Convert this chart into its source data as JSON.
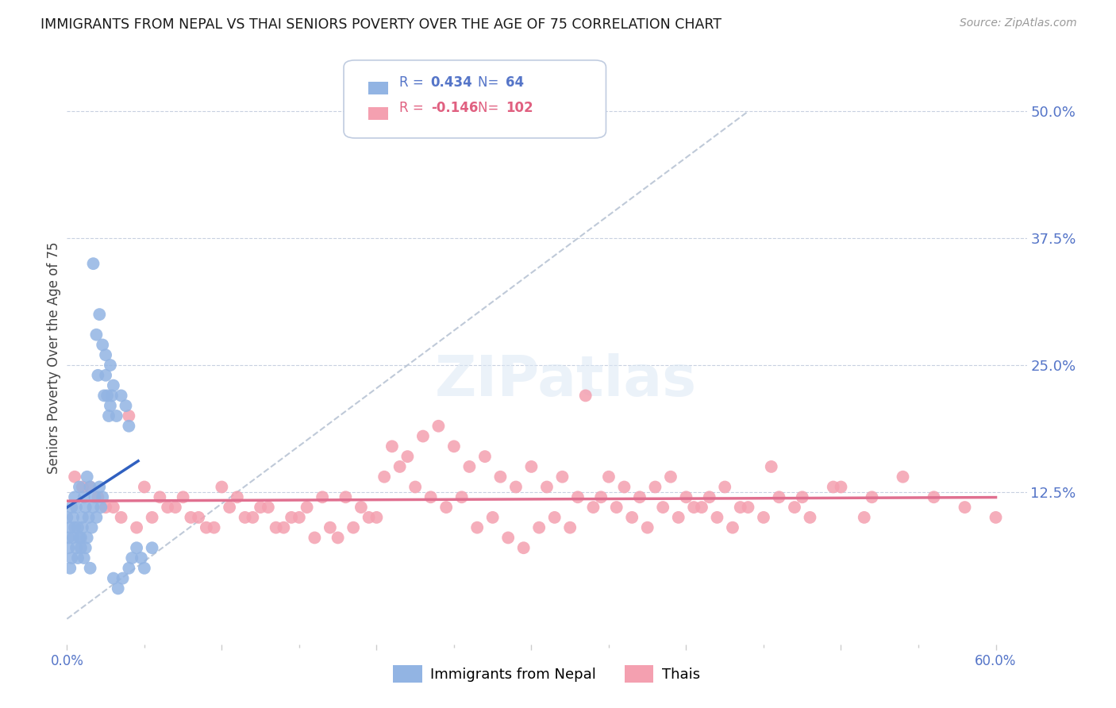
{
  "title": "IMMIGRANTS FROM NEPAL VS THAI SENIORS POVERTY OVER THE AGE OF 75 CORRELATION CHART",
  "source": "Source: ZipAtlas.com",
  "ylabel": "Seniors Poverty Over the Age of 75",
  "ytick_labels": [
    "50.0%",
    "37.5%",
    "25.0%",
    "12.5%"
  ],
  "ytick_values": [
    0.5,
    0.375,
    0.25,
    0.125
  ],
  "xlim": [
    0.0,
    0.62
  ],
  "ylim": [
    -0.025,
    0.54
  ],
  "legend1_label": "Immigrants from Nepal",
  "legend2_label": "Thais",
  "R1": "0.434",
  "N1": "64",
  "R2": "-0.146",
  "N2": "102",
  "nepal_color": "#92b4e3",
  "thai_color": "#f4a0b0",
  "nepal_line_color": "#3060c0",
  "thai_line_color": "#e07090",
  "dashed_line_color": "#b8c4d4",
  "background_color": "#ffffff",
  "nepal_x": [
    0.0,
    0.001,
    0.002,
    0.003,
    0.004,
    0.005,
    0.006,
    0.007,
    0.008,
    0.009,
    0.01,
    0.011,
    0.012,
    0.013,
    0.014,
    0.015,
    0.016,
    0.017,
    0.018,
    0.019,
    0.02,
    0.021,
    0.022,
    0.023,
    0.024,
    0.025,
    0.026,
    0.027,
    0.028,
    0.029,
    0.03,
    0.032,
    0.035,
    0.038,
    0.04,
    0.042,
    0.045,
    0.048,
    0.05,
    0.055,
    0.001,
    0.002,
    0.003,
    0.004,
    0.005,
    0.006,
    0.007,
    0.008,
    0.009,
    0.01,
    0.011,
    0.012,
    0.013,
    0.015,
    0.017,
    0.019,
    0.021,
    0.023,
    0.025,
    0.028,
    0.03,
    0.033,
    0.036,
    0.04
  ],
  "nepal_y": [
    0.1,
    0.08,
    0.09,
    0.11,
    0.1,
    0.12,
    0.11,
    0.09,
    0.13,
    0.08,
    0.1,
    0.12,
    0.11,
    0.14,
    0.1,
    0.13,
    0.09,
    0.11,
    0.12,
    0.1,
    0.24,
    0.13,
    0.11,
    0.12,
    0.22,
    0.24,
    0.22,
    0.2,
    0.21,
    0.22,
    0.23,
    0.2,
    0.22,
    0.21,
    0.19,
    0.06,
    0.07,
    0.06,
    0.05,
    0.07,
    0.07,
    0.05,
    0.06,
    0.08,
    0.09,
    0.07,
    0.06,
    0.08,
    0.07,
    0.09,
    0.06,
    0.07,
    0.08,
    0.05,
    0.35,
    0.28,
    0.3,
    0.27,
    0.26,
    0.25,
    0.04,
    0.03,
    0.04,
    0.05
  ],
  "thai_x": [
    0.01,
    0.02,
    0.03,
    0.04,
    0.05,
    0.06,
    0.07,
    0.08,
    0.09,
    0.1,
    0.11,
    0.12,
    0.13,
    0.14,
    0.15,
    0.16,
    0.17,
    0.18,
    0.19,
    0.2,
    0.21,
    0.22,
    0.23,
    0.24,
    0.25,
    0.26,
    0.27,
    0.28,
    0.29,
    0.3,
    0.31,
    0.32,
    0.33,
    0.34,
    0.35,
    0.36,
    0.37,
    0.38,
    0.39,
    0.4,
    0.41,
    0.42,
    0.43,
    0.44,
    0.45,
    0.46,
    0.47,
    0.48,
    0.5,
    0.52,
    0.54,
    0.56,
    0.58,
    0.6,
    0.005,
    0.015,
    0.025,
    0.035,
    0.045,
    0.055,
    0.065,
    0.075,
    0.085,
    0.095,
    0.105,
    0.115,
    0.125,
    0.135,
    0.145,
    0.155,
    0.165,
    0.175,
    0.185,
    0.195,
    0.205,
    0.215,
    0.225,
    0.235,
    0.245,
    0.255,
    0.265,
    0.275,
    0.285,
    0.295,
    0.305,
    0.315,
    0.325,
    0.335,
    0.345,
    0.355,
    0.365,
    0.375,
    0.385,
    0.395,
    0.405,
    0.415,
    0.425,
    0.435,
    0.455,
    0.475,
    0.495,
    0.515
  ],
  "thai_y": [
    0.13,
    0.12,
    0.11,
    0.2,
    0.13,
    0.12,
    0.11,
    0.1,
    0.09,
    0.13,
    0.12,
    0.1,
    0.11,
    0.09,
    0.1,
    0.08,
    0.09,
    0.12,
    0.11,
    0.1,
    0.17,
    0.16,
    0.18,
    0.19,
    0.17,
    0.15,
    0.16,
    0.14,
    0.13,
    0.15,
    0.13,
    0.14,
    0.12,
    0.11,
    0.14,
    0.13,
    0.12,
    0.13,
    0.14,
    0.12,
    0.11,
    0.1,
    0.09,
    0.11,
    0.1,
    0.12,
    0.11,
    0.1,
    0.13,
    0.12,
    0.14,
    0.12,
    0.11,
    0.1,
    0.14,
    0.13,
    0.11,
    0.1,
    0.09,
    0.1,
    0.11,
    0.12,
    0.1,
    0.09,
    0.11,
    0.1,
    0.11,
    0.09,
    0.1,
    0.11,
    0.12,
    0.08,
    0.09,
    0.1,
    0.14,
    0.15,
    0.13,
    0.12,
    0.11,
    0.12,
    0.09,
    0.1,
    0.08,
    0.07,
    0.09,
    0.1,
    0.09,
    0.22,
    0.12,
    0.11,
    0.1,
    0.09,
    0.11,
    0.1,
    0.11,
    0.12,
    0.13,
    0.11,
    0.15,
    0.12,
    0.13,
    0.1
  ]
}
